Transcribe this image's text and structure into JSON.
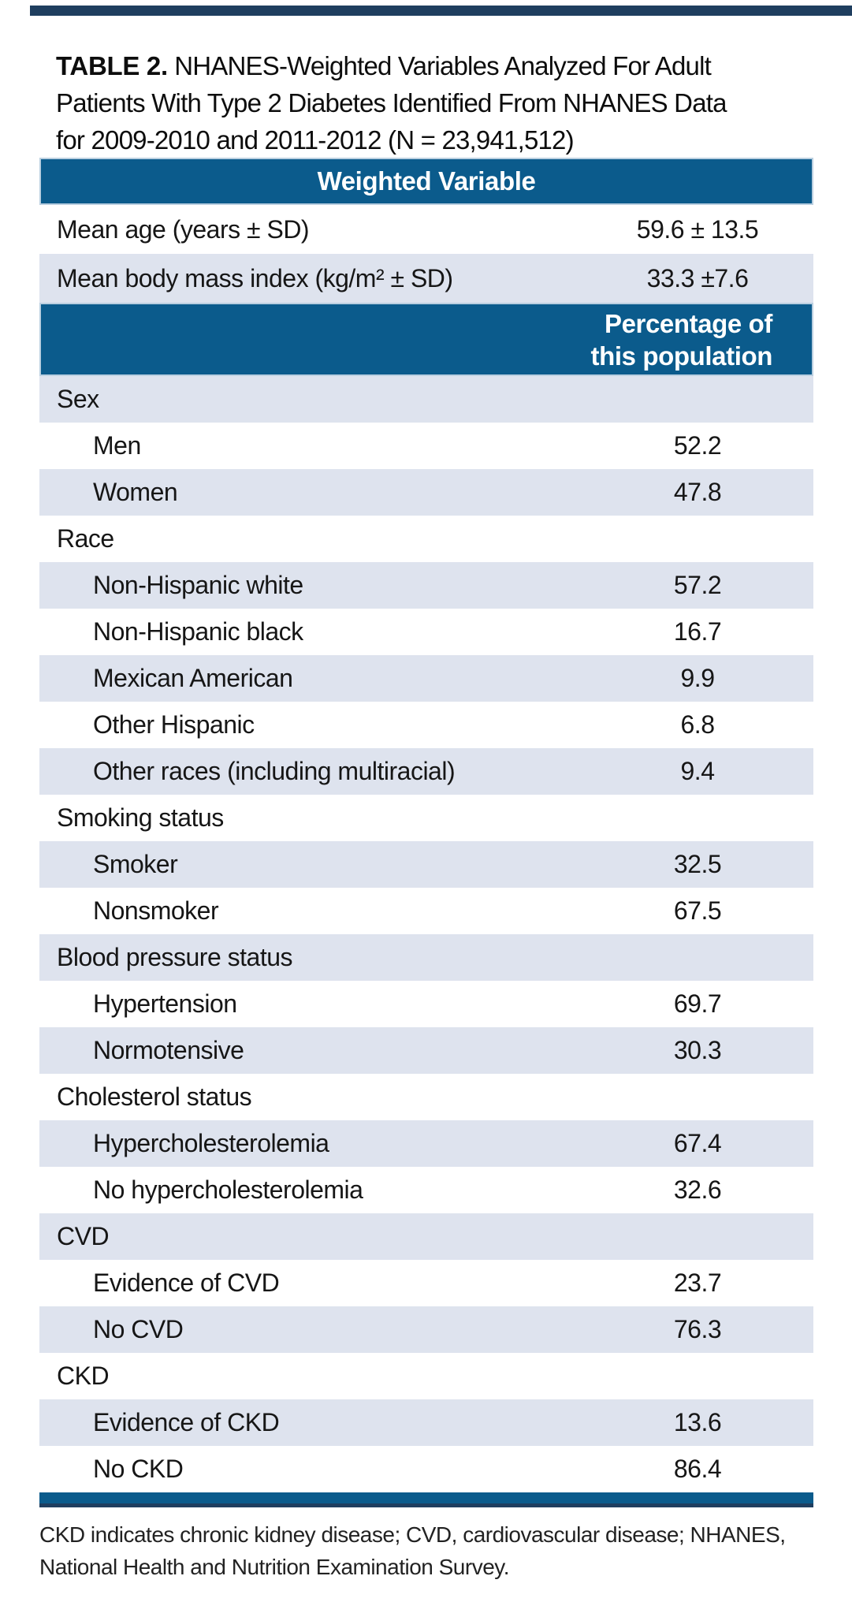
{
  "title": {
    "label": "TABLE 2.",
    "line1": "NHANES-Weighted Variables Analyzed For Adult",
    "line2": "Patients With Type 2 Diabetes Identified From NHANES Data",
    "line3": "for 2009-2010 and 2011-2012 (N = 23,941,512)"
  },
  "table": {
    "header": "Weighted Variable",
    "summary_rows": [
      {
        "label": "Mean age (years ± SD)",
        "value": "59.6 ± 13.5",
        "shaded": false,
        "indent": false
      },
      {
        "label": "Mean body mass index (kg/m² ± SD)",
        "value": "33.3 ±7.6",
        "shaded": true,
        "indent": false
      }
    ],
    "percent_header": {
      "line1": "Percentage of",
      "line2": "this population"
    },
    "rows": [
      {
        "label": "Sex",
        "value": "",
        "shaded": true,
        "indent": false
      },
      {
        "label": "Men",
        "value": "52.2",
        "shaded": false,
        "indent": true
      },
      {
        "label": "Women",
        "value": "47.8",
        "shaded": true,
        "indent": true
      },
      {
        "label": "Race",
        "value": "",
        "shaded": false,
        "indent": false
      },
      {
        "label": "Non-Hispanic white",
        "value": "57.2",
        "shaded": true,
        "indent": true
      },
      {
        "label": "Non-Hispanic black",
        "value": "16.7",
        "shaded": false,
        "indent": true
      },
      {
        "label": "Mexican American",
        "value": "9.9",
        "shaded": true,
        "indent": true
      },
      {
        "label": "Other Hispanic",
        "value": "6.8",
        "shaded": false,
        "indent": true
      },
      {
        "label": "Other races (including multiracial)",
        "value": "9.4",
        "shaded": true,
        "indent": true
      },
      {
        "label": "Smoking status",
        "value": "",
        "shaded": false,
        "indent": false
      },
      {
        "label": "Smoker",
        "value": "32.5",
        "shaded": true,
        "indent": true
      },
      {
        "label": "Nonsmoker",
        "value": "67.5",
        "shaded": false,
        "indent": true
      },
      {
        "label": "Blood pressure status",
        "value": "",
        "shaded": true,
        "indent": false
      },
      {
        "label": "Hypertension",
        "value": "69.7",
        "shaded": false,
        "indent": true
      },
      {
        "label": "Normotensive",
        "value": "30.3",
        "shaded": true,
        "indent": true
      },
      {
        "label": "Cholesterol status",
        "value": "",
        "shaded": false,
        "indent": false
      },
      {
        "label": "Hypercholesterolemia",
        "value": "67.4",
        "shaded": true,
        "indent": true
      },
      {
        "label": "No hypercholesterolemia",
        "value": "32.6",
        "shaded": false,
        "indent": true
      },
      {
        "label": "CVD",
        "value": "",
        "shaded": true,
        "indent": false
      },
      {
        "label": "Evidence of CVD",
        "value": "23.7",
        "shaded": false,
        "indent": true
      },
      {
        "label": "No CVD",
        "value": "76.3",
        "shaded": true,
        "indent": true
      },
      {
        "label": "CKD",
        "value": "",
        "shaded": false,
        "indent": false
      },
      {
        "label": "Evidence of CKD",
        "value": "13.6",
        "shaded": true,
        "indent": true
      },
      {
        "label": "No CKD",
        "value": "86.4",
        "shaded": false,
        "indent": true
      }
    ]
  },
  "footnote": {
    "line1": "CKD indicates chronic kidney disease; CVD, cardiovascular disease; NHANES,",
    "line2": "National Health and Nutrition Examination Survey."
  },
  "colors": {
    "header_blue": "#0b5b8c",
    "row_shade": "#dee3ee",
    "rule_navy": "#1f3e5f",
    "header_border": "#bacfe0",
    "header_text": "#ffffff",
    "body_text": "#161616"
  }
}
